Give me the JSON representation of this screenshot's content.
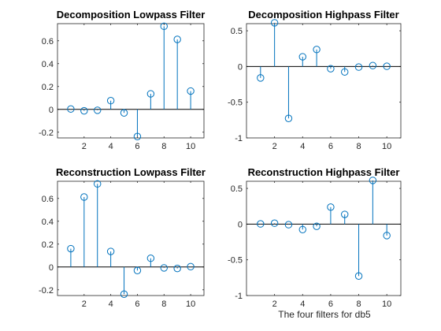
{
  "figure": {
    "xlabel": "The four filters for db5",
    "stem_color": "#0072BD",
    "baseline_color": "#000000"
  },
  "chart_data": [
    {
      "type": "stem",
      "title": "Decomposition Lowpass Filter",
      "x": [
        1,
        2,
        3,
        4,
        5,
        6,
        7,
        8,
        9,
        10
      ],
      "y": [
        0.003,
        -0.013,
        -0.008,
        0.076,
        -0.031,
        -0.238,
        0.136,
        0.727,
        0.612,
        0.16
      ],
      "xlim": [
        0,
        11
      ],
      "ylim": [
        -0.25,
        0.75
      ],
      "xticks": [
        2,
        4,
        6,
        8,
        10
      ],
      "xtick_labels": [
        "2",
        "4",
        "6",
        "8",
        "10"
      ],
      "yticks": [
        -0.2,
        0,
        0.2,
        0.4,
        0.6
      ],
      "ytick_labels": [
        "-0.2",
        "0",
        "0.2",
        "0.4",
        "0.6"
      ]
    },
    {
      "type": "stem",
      "title": "Decomposition Highpass Filter",
      "x": [
        1,
        2,
        3,
        4,
        5,
        6,
        7,
        8,
        9,
        10
      ],
      "y": [
        -0.16,
        0.612,
        -0.727,
        0.136,
        0.238,
        -0.031,
        -0.076,
        -0.008,
        0.013,
        0.003
      ],
      "xlim": [
        0,
        11
      ],
      "ylim": [
        -1,
        0.6
      ],
      "xticks": [
        2,
        4,
        6,
        8,
        10
      ],
      "xtick_labels": [
        "2",
        "4",
        "6",
        "8",
        "10"
      ],
      "yticks": [
        -1,
        -0.5,
        0,
        0.5
      ],
      "ytick_labels": [
        "-1",
        "-0.5",
        "0",
        "0.5"
      ]
    },
    {
      "type": "stem",
      "title": "Reconstruction Lowpass Filter",
      "x": [
        1,
        2,
        3,
        4,
        5,
        6,
        7,
        8,
        9,
        10
      ],
      "y": [
        0.16,
        0.612,
        0.727,
        0.136,
        -0.238,
        -0.031,
        0.076,
        -0.008,
        -0.013,
        0.003
      ],
      "xlim": [
        0,
        11
      ],
      "ylim": [
        -0.25,
        0.75
      ],
      "xticks": [
        2,
        4,
        6,
        8,
        10
      ],
      "xtick_labels": [
        "2",
        "4",
        "6",
        "8",
        "10"
      ],
      "yticks": [
        -0.2,
        0,
        0.2,
        0.4,
        0.6
      ],
      "ytick_labels": [
        "-0.2",
        "0",
        "0.2",
        "0.4",
        "0.6"
      ]
    },
    {
      "type": "stem",
      "title": "Reconstruction Highpass Filter",
      "x": [
        1,
        2,
        3,
        4,
        5,
        6,
        7,
        8,
        9,
        10
      ],
      "y": [
        0.003,
        0.013,
        -0.008,
        -0.076,
        -0.031,
        0.238,
        0.136,
        -0.727,
        0.612,
        -0.16
      ],
      "xlim": [
        0,
        11
      ],
      "ylim": [
        -1,
        0.6
      ],
      "xticks": [
        2,
        4,
        6,
        8,
        10
      ],
      "xtick_labels": [
        "2",
        "4",
        "6",
        "8",
        "10"
      ],
      "yticks": [
        -1,
        -0.5,
        0,
        0.5
      ],
      "ytick_labels": [
        "-1",
        "-0.5",
        "0",
        "0.5"
      ]
    }
  ]
}
